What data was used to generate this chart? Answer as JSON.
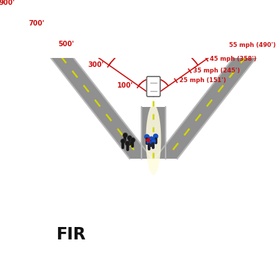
{
  "title": "FIR",
  "bg_color": "#ffffff",
  "road_color": "#909090",
  "road_edge_color": "#b8b8b8",
  "road_inner_color": "#a0a0a0",
  "dash_color": "#d4d400",
  "arc_color": "#cc1111",
  "arc_distances": [
    100,
    300,
    500,
    700,
    900
  ],
  "arc_labels_left": [
    "100'",
    "300'",
    "500'",
    "700'",
    "900'"
  ],
  "speed_labels": [
    "25 mph (151')",
    "35 mph (245')",
    "45 mph (358')",
    "55 mph (490')"
  ],
  "speed_distances": [
    151,
    245,
    358,
    490
  ],
  "headlight_color": "#fffce0",
  "car_color": "#ffffff",
  "car_edge_color": "#666666",
  "ped_dark_color": "#1a1a1a",
  "ped_blue_color": "#1155cc",
  "arrow_color": "#dd0000"
}
